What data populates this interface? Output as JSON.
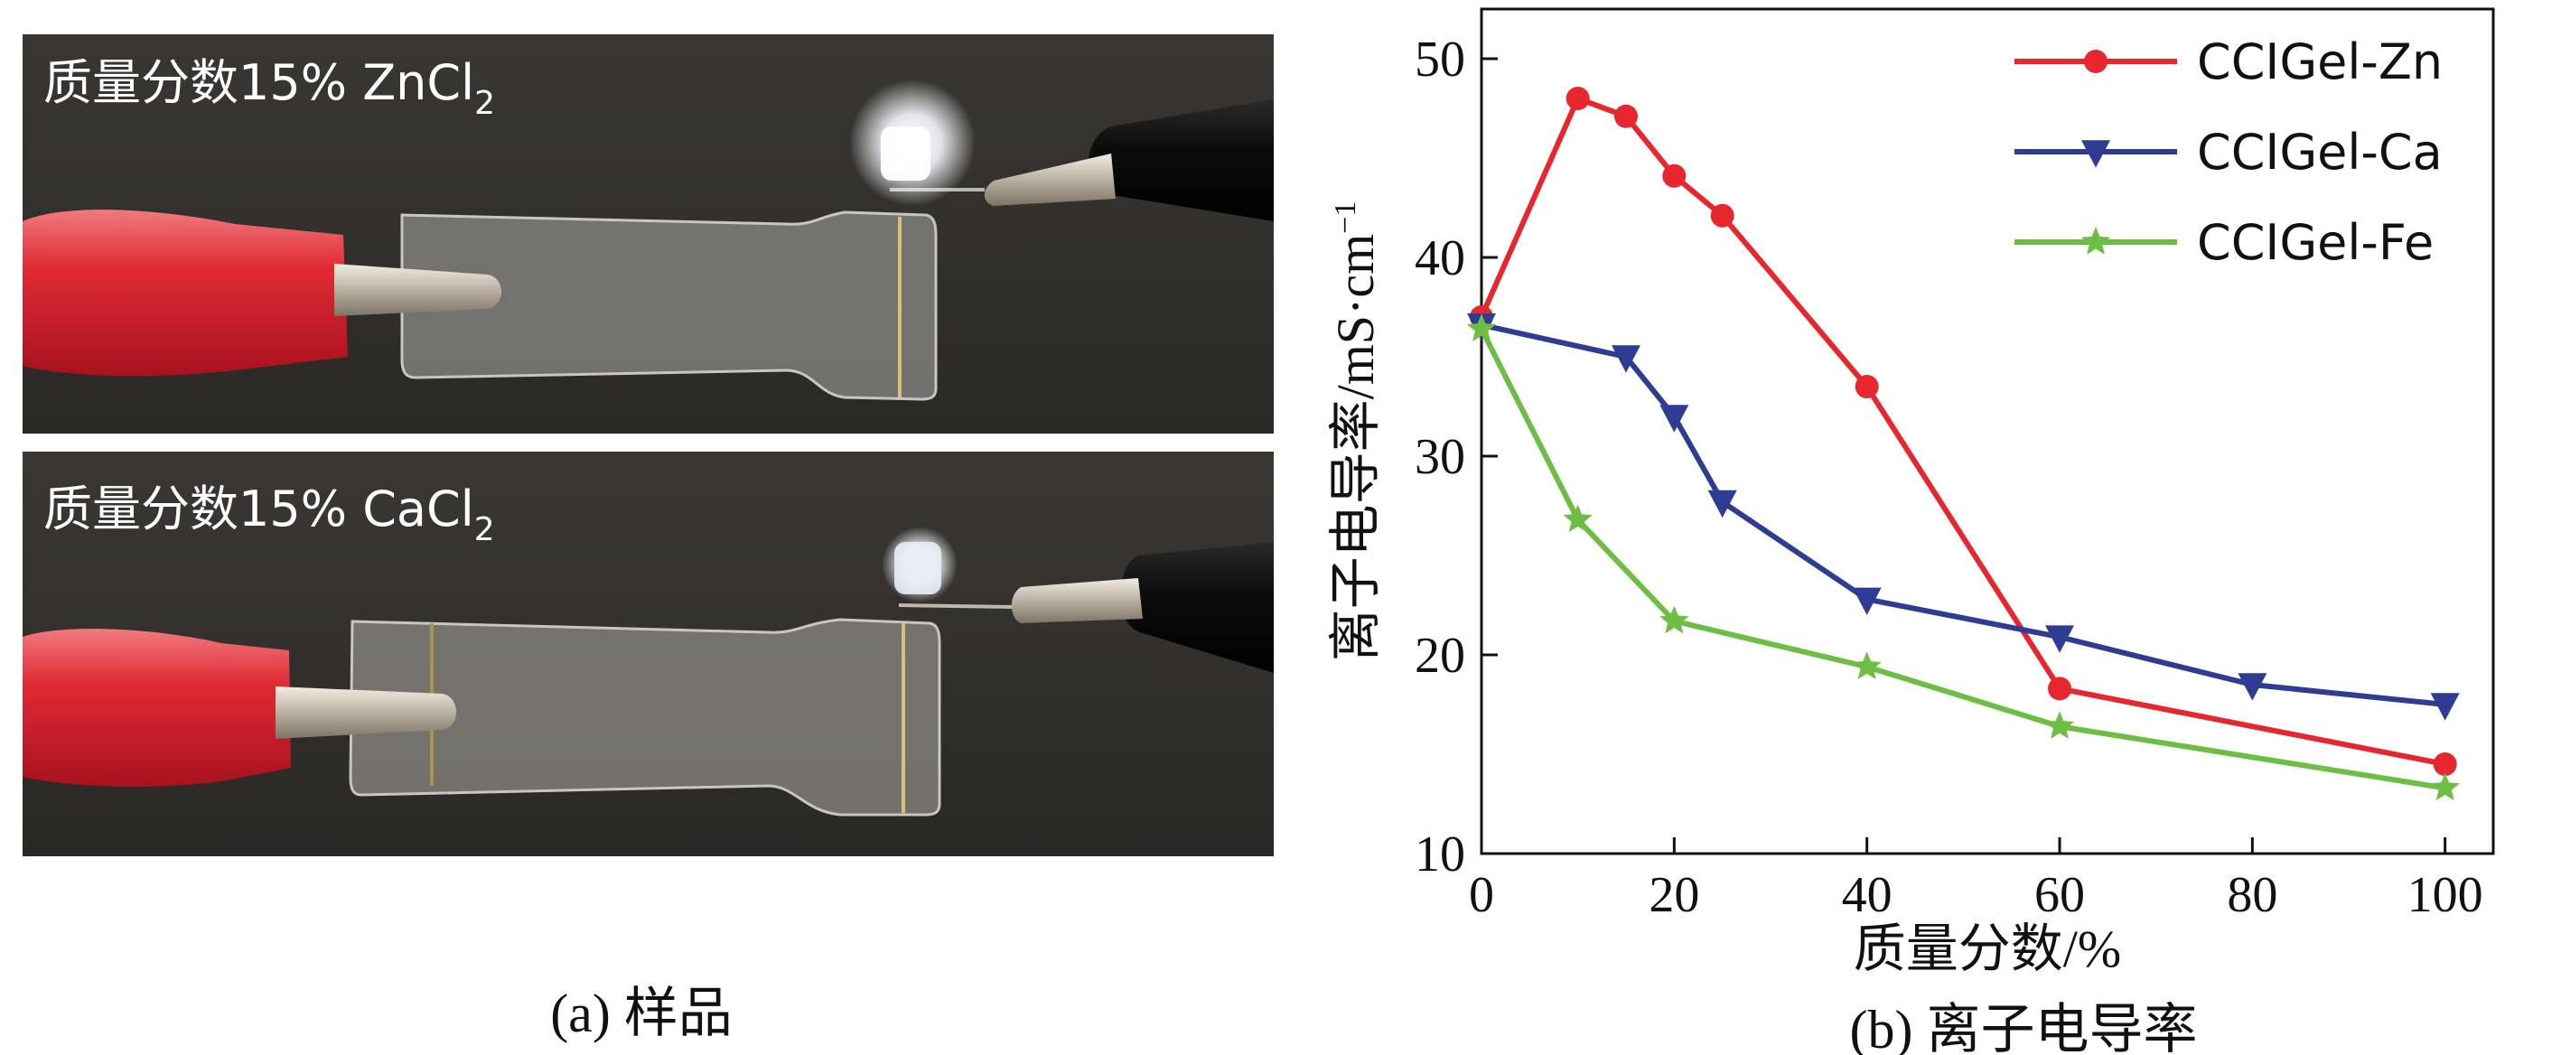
{
  "panel_a": {
    "photo_top_label": "质量分数15% ZnCl",
    "photo_top_sub": "2",
    "photo_bottom_label": "质量分数15% CaCl",
    "photo_bottom_sub": "2",
    "caption": "(a) 样品"
  },
  "panel_b": {
    "caption": "(b) 离子电导率"
  },
  "colors": {
    "zn": "#e8262d",
    "ca": "#2e3d93",
    "fe": "#6cbf43"
  },
  "chart_data": {
    "type": "line",
    "title": "",
    "xlabel": "质量分数/%",
    "ylabel_main": "离子电导率/mS·cm",
    "ylabel_sup": "−1",
    "xlim": [
      0,
      105
    ],
    "ylim": [
      10,
      52.5
    ],
    "xticks": [
      0,
      20,
      40,
      60,
      80,
      100
    ],
    "yticks": [
      10,
      20,
      30,
      40,
      50
    ],
    "legend_position": "top-right",
    "grid": false,
    "series": [
      {
        "name": "CCIGel-Zn",
        "marker": "circle",
        "color_key": "zn",
        "x": [
          0,
          10,
          15,
          20,
          25,
          40,
          60,
          100
        ],
        "y": [
          37.0,
          48.0,
          47.1,
          44.1,
          42.1,
          33.5,
          18.3,
          14.5
        ]
      },
      {
        "name": "CCIGel-Ca",
        "marker": "triangle-down",
        "color_key": "ca",
        "x": [
          0,
          15,
          20,
          25,
          40,
          60,
          80,
          100
        ],
        "y": [
          36.6,
          35.0,
          32.0,
          27.7,
          22.8,
          20.9,
          18.5,
          17.5
        ]
      },
      {
        "name": "CCIGel-Fe",
        "marker": "star",
        "color_key": "fe",
        "x": [
          0,
          10,
          20,
          40,
          60,
          100
        ],
        "y": [
          36.4,
          26.8,
          21.7,
          19.4,
          16.4,
          13.3
        ]
      }
    ]
  }
}
